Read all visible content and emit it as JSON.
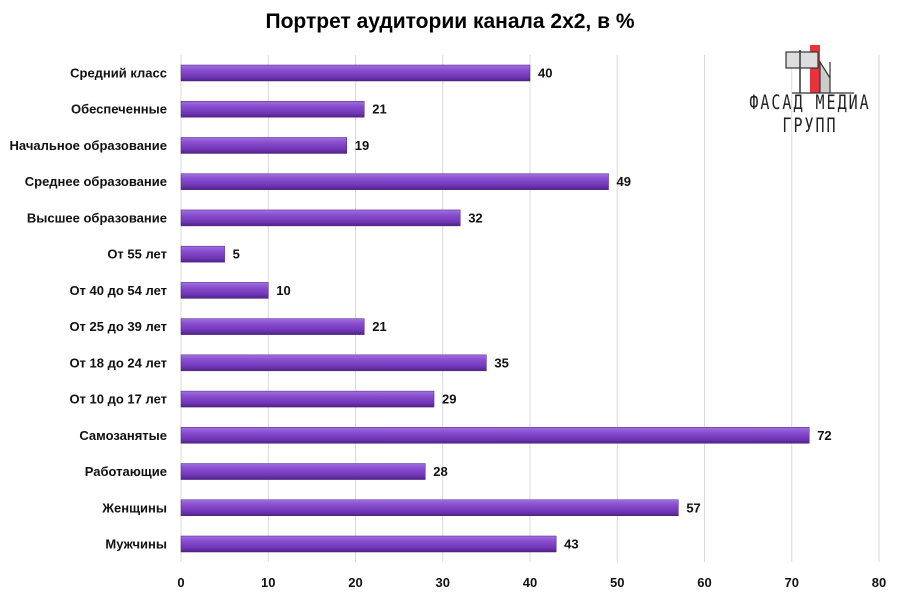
{
  "chart_data": {
    "type": "bar",
    "orientation": "horizontal",
    "title": "Портрет аудитории канала 2х2, в %",
    "categories": [
      "Средний класс",
      "Обеспеченные",
      "Начальное образование",
      "Среднее образование",
      "Высшее образование",
      "От 55 лет",
      "От 40 до 54 лет",
      "От 25 до 39 лет",
      "От 18 до 24 лет",
      "От 10 до 17 лет",
      "Самозанятые",
      "Работающие",
      "Женщины",
      "Мужчины"
    ],
    "values": [
      40,
      21,
      19,
      49,
      32,
      5,
      10,
      21,
      35,
      29,
      72,
      28,
      57,
      43
    ],
    "xlim": [
      0,
      80
    ],
    "xticks": [
      0,
      10,
      20,
      30,
      40,
      50,
      60,
      70,
      80
    ],
    "grid": true,
    "data_labels": true,
    "bar_color": "#7b3fc0"
  },
  "logo": {
    "text": "ФАСАД МЕДИА ГРУПП",
    "accent": "#e8323c"
  }
}
